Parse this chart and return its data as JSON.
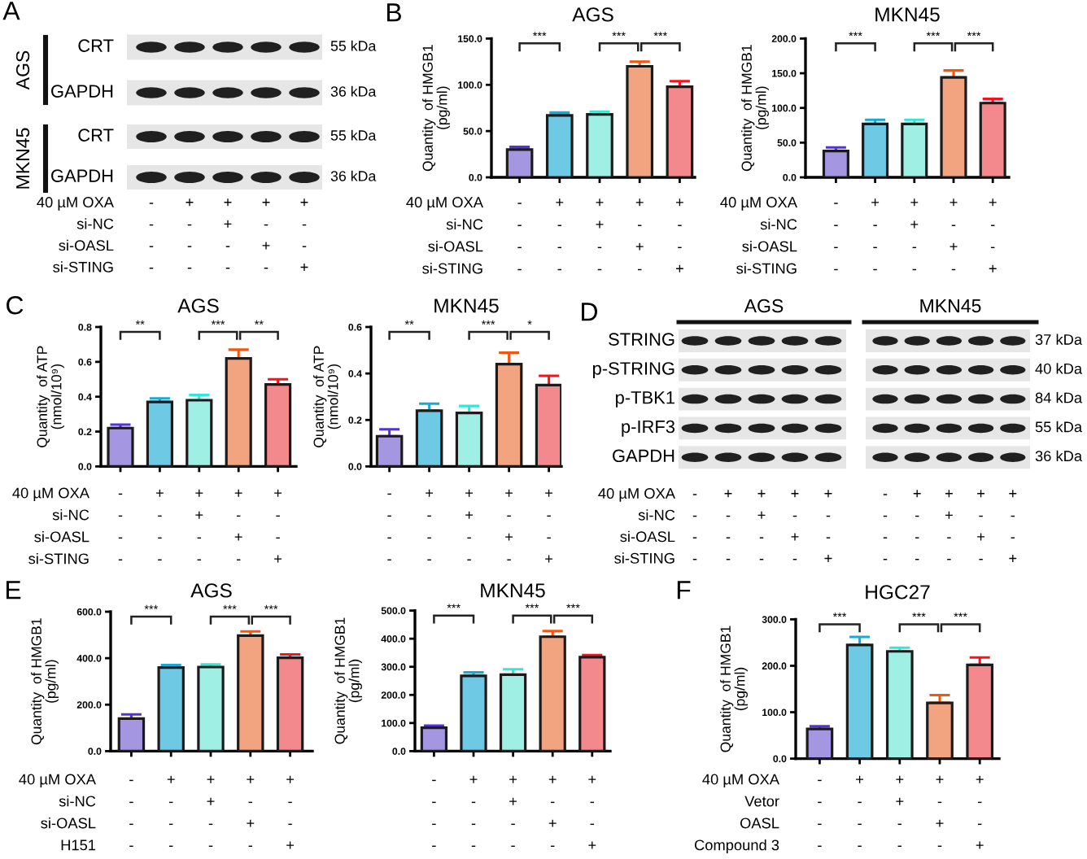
{
  "chart_data": [
    {
      "type": "other",
      "title": "AGS",
      "y_categories": [
        "CRT",
        "GAPDH"
      ],
      "y2_categories": [
        "55 kDa",
        "36 kDa"
      ],
      "categories": [
        null,
        null,
        null,
        null,
        null
      ],
      "annotations": [
        "A"
      ]
    },
    {
      "type": "other",
      "title": "MKN45",
      "y_categories": [
        "CRT",
        "GAPDH"
      ],
      "y2_categories": [
        "55 kDa",
        "36 kDa"
      ],
      "categories": [
        "-\n-\n-\n-",
        "+\n-\n-\n-",
        "+\n+\n-\n-",
        "+\n-\n+\n-",
        "+\n-\n-\n+"
      ],
      "xlabel": "40 µM OXA\nsi-NC\nsi-OASL\nsi-STING"
    },
    {
      "type": "bar",
      "title": "AGS",
      "ylabel": "Quantity  of HMGB1\n(pg/ml)",
      "xlabel": "40 µM OXA\nsi-NC\nsi-OASL\nsi-STING",
      "categories": [
        "-\n-\n-\n-",
        "+\n-\n-\n-",
        "+\n+\n-\n-",
        "+\n-\n+\n-",
        "+\n-\n-\n+"
      ],
      "values": [
        30,
        67,
        68,
        120,
        98
      ],
      "errors": [
        [
          30,
          33
        ],
        [
          67,
          70
        ],
        [
          68,
          71
        ],
        [
          120,
          125
        ],
        [
          98,
          104
        ]
      ],
      "colors": [
        "#a596e2",
        "#6ec9e4",
        "#9fefe5",
        "#f2a481",
        "#f3888d"
      ],
      "ylim": [
        0,
        150
      ],
      "yticks": [
        {
          "value": 0,
          "label": "0.0"
        },
        {
          "value": 50,
          "label": "50.0"
        },
        {
          "value": 100,
          "label": "100.0"
        },
        {
          "value": 150,
          "label": "150.0"
        }
      ],
      "annotations": [
        "B",
        "***",
        "***",
        "***"
      ]
    },
    {
      "type": "bar",
      "title": "MKN45",
      "ylabel": "Quantity  of HMGB1\n(pg/ml)",
      "xlabel": "40 µM OXA\nsi-NC\nsi-OASL\nsi-STING",
      "categories": [
        "-\n-\n-\n-",
        "+\n-\n-\n-",
        "+\n+\n-\n-",
        "+\n-\n+\n-",
        "+\n-\n-\n+"
      ],
      "values": [
        38,
        77,
        77,
        144,
        107
      ],
      "errors": [
        [
          38,
          43
        ],
        [
          77,
          83
        ],
        [
          77,
          83
        ],
        [
          144,
          154
        ],
        [
          107,
          113
        ]
      ],
      "colors": [
        "#a596e2",
        "#6ec9e4",
        "#9fefe5",
        "#f2a481",
        "#f3888d"
      ],
      "ylim": [
        0,
        200
      ],
      "yticks": [
        {
          "value": 0,
          "label": "0.0"
        },
        {
          "value": 50,
          "label": "50.0"
        },
        {
          "value": 100,
          "label": "100.0"
        },
        {
          "value": 150,
          "label": "150.0"
        },
        {
          "value": 200,
          "label": "200.0"
        }
      ],
      "annotations": [
        "***",
        "***",
        "***"
      ]
    },
    {
      "type": "bar",
      "title": "AGS",
      "ylabel": "Quantity  of ATP\n(nmol/10⁹)",
      "xlabel": "40 µM OXA\nsi-NC\nsi-OASL\nsi-STING",
      "categories": [
        "-\n-\n-\n-",
        "+\n-\n-\n-",
        "+\n+\n-\n-",
        "+\n-\n+\n-",
        "+\n-\n-\n+"
      ],
      "values": [
        0.22,
        0.37,
        0.38,
        0.62,
        0.47
      ],
      "errors": [
        [
          0.22,
          0.24
        ],
        [
          0.37,
          0.39
        ],
        [
          0.38,
          0.41
        ],
        [
          0.62,
          0.67
        ],
        [
          0.47,
          0.5
        ]
      ],
      "colors": [
        "#a596e2",
        "#6ec9e4",
        "#9fefe5",
        "#f2a481",
        "#f3888d"
      ],
      "ylim": [
        0,
        0.8
      ],
      "yticks": [
        {
          "value": 0,
          "label": "0.0"
        },
        0.2,
        0.4,
        0.6,
        0.8
      ],
      "annotations": [
        "C",
        "**",
        "***",
        "**"
      ]
    },
    {
      "type": "bar",
      "title": "MKN45",
      "ylabel": "Quantity  of ATP\n(nmol/10⁹)",
      "categories": [
        "-\n-\n-\n-",
        "+\n-\n-\n-",
        "+\n+\n-\n-",
        "+\n-\n+\n-",
        "+\n-\n-\n+"
      ],
      "values": [
        0.13,
        0.24,
        0.23,
        0.44,
        0.35
      ],
      "errors": [
        [
          0.13,
          0.16
        ],
        [
          0.24,
          0.27
        ],
        [
          0.23,
          0.26
        ],
        [
          0.44,
          0.49
        ],
        [
          0.35,
          0.39
        ]
      ],
      "colors": [
        "#a596e2",
        "#6ec9e4",
        "#9fefe5",
        "#f2a481",
        "#f3888d"
      ],
      "ylim": [
        0,
        0.6
      ],
      "yticks": [
        {
          "value": 0,
          "label": "0.0"
        },
        0.2,
        0.4,
        0.6
      ],
      "annotations": [
        "**",
        "***",
        "*"
      ]
    },
    {
      "type": "other",
      "title": "AGS",
      "y_categories": [
        "STRING",
        "p-STRING",
        "p-TBK1",
        "p-IRF3",
        "GAPDH"
      ],
      "categories": [
        "-\n-\n-\n-",
        "+\n-\n-\n-",
        "+\n+\n-\n-",
        "+\n-\n+\n-",
        "+\n-\n-\n+"
      ],
      "xlabel": "40 µM OXA\nsi-NC\nsi-OASL\nsi-STING",
      "annotations": [
        "D"
      ]
    },
    {
      "type": "other",
      "title": "MKN45",
      "y2_categories": [
        "37 kDa",
        "40 kDa",
        "84 kDa",
        "55 kDa",
        "36 kDa"
      ],
      "categories": [
        "-\n-\n-\n-",
        "+\n-\n-\n-",
        "+\n+\n-\n-",
        "+\n-\n+\n-",
        "+\n-\n-\n+"
      ]
    },
    {
      "type": "bar",
      "title": "AGS",
      "ylabel": "Quantity  of HMGB1\n(pg/ml)",
      "xlabel": "40 µM OXA\nsi-NC\nsi-OASL\nH151",
      "categories": [
        "-\n-\n-\n-",
        "+\n-\n-\n-",
        "+\n+\n-\n-",
        "+\n-\n+\n-",
        "+\n-\n-\n+"
      ],
      "values": [
        140,
        360,
        362,
        497,
        402
      ],
      "errors": [
        [
          140,
          158
        ],
        [
          360,
          371
        ],
        [
          362,
          373
        ],
        [
          497,
          515
        ],
        [
          402,
          416
        ]
      ],
      "colors": [
        "#a596e2",
        "#6ec9e4",
        "#9fefe5",
        "#f2a481",
        "#f3888d"
      ],
      "ylim": [
        0,
        600
      ],
      "yticks": [
        {
          "value": 0,
          "label": "0.0"
        },
        {
          "value": 200,
          "label": "200.0"
        },
        {
          "value": 400,
          "label": "400.0"
        },
        {
          "value": 600,
          "label": "600.0"
        }
      ],
      "annotations": [
        "E",
        "***",
        "***",
        "***"
      ]
    },
    {
      "type": "bar",
      "title": "MKN45",
      "ylabel": "Quantity  of HMGB1\n(pg/ml)",
      "categories": [
        "-\n-\n-\n-",
        "+\n-\n-\n-",
        "+\n+\n-\n-",
        "+\n-\n+\n-",
        "+\n-\n-\n+"
      ],
      "values": [
        83,
        268,
        272,
        407,
        334
      ],
      "errors": [
        [
          83,
          91
        ],
        [
          268,
          280
        ],
        [
          272,
          291
        ],
        [
          407,
          427
        ],
        [
          334,
          342
        ]
      ],
      "colors": [
        "#a596e2",
        "#6ec9e4",
        "#9fefe5",
        "#f2a481",
        "#f3888d"
      ],
      "ylim": [
        0,
        500
      ],
      "yticks": [
        {
          "value": 0,
          "label": "0.0"
        },
        {
          "value": 100,
          "label": "100.0"
        },
        {
          "value": 200,
          "label": "200.0"
        },
        {
          "value": 300,
          "label": "300.0"
        },
        {
          "value": 400,
          "label": "400.0"
        },
        {
          "value": 500,
          "label": "500.0"
        }
      ],
      "annotations": [
        "***",
        "***",
        "***"
      ]
    },
    {
      "type": "bar",
      "title": "HGC27",
      "ylabel": "Quantity  of HMGB1\n(pg/ml)",
      "xlabel": "40 µM OXA\nVetor\nOASL\nCompound 3",
      "categories": [
        "-\n-\n-\n-",
        "+\n-\n-\n-",
        "+\n+\n-\n-",
        "+\n-\n+\n-",
        "+\n-\n-\n+"
      ],
      "values": [
        64,
        245,
        231,
        120,
        202
      ],
      "errors": [
        [
          64,
          70
        ],
        [
          245,
          262
        ],
        [
          231,
          239
        ],
        [
          120,
          137
        ],
        [
          202,
          218
        ]
      ],
      "colors": [
        "#a596e2",
        "#6ec9e4",
        "#9fefe5",
        "#f2a481",
        "#f3888d"
      ],
      "ylim": [
        0,
        300
      ],
      "yticks": [
        {
          "value": 0,
          "label": "0.0"
        },
        {
          "value": 100,
          "label": "100.0"
        },
        {
          "value": 200,
          "label": "200.0"
        },
        {
          "value": 300,
          "label": "300.0"
        }
      ],
      "annotations": [
        "F",
        "***",
        "***",
        "***"
      ]
    }
  ]
}
